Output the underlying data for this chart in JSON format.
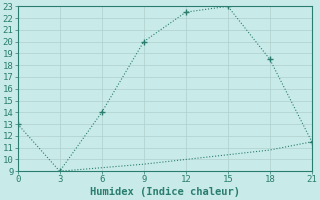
{
  "title": "",
  "xlabel": "Humidex (Indice chaleur)",
  "ylabel": "",
  "xlim": [
    0,
    21
  ],
  "ylim": [
    9,
    23
  ],
  "xticks": [
    0,
    3,
    6,
    9,
    12,
    15,
    18,
    21
  ],
  "yticks": [
    9,
    10,
    11,
    12,
    13,
    14,
    15,
    16,
    17,
    18,
    19,
    20,
    21,
    22,
    23
  ],
  "line1_x": [
    0,
    3,
    6,
    9,
    12,
    15,
    18,
    21
  ],
  "line1_y": [
    13,
    9,
    14,
    20,
    22.5,
    23,
    18.5,
    11.5
  ],
  "line2_x": [
    3,
    6,
    9,
    12,
    15,
    18,
    21
  ],
  "line2_y": [
    9,
    9.3,
    9.6,
    10.0,
    10.4,
    10.8,
    11.5
  ],
  "line_color": "#2a7d6e",
  "bg_color": "#c8eae8",
  "grid_color": "#b0d0ce",
  "font_color": "#2a7d6e",
  "tick_fontsize": 6.5,
  "label_fontsize": 7.5
}
